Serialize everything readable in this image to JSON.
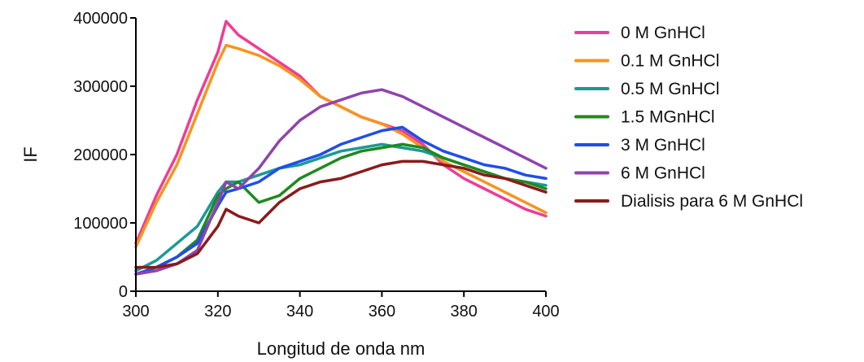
{
  "chart_data": {
    "type": "line",
    "xlabel": "Longitud de onda nm",
    "ylabel": "IF",
    "xlim": [
      300,
      400
    ],
    "ylim": [
      0,
      400000
    ],
    "x_ticks": [
      300,
      320,
      340,
      360,
      380,
      400
    ],
    "y_ticks": [
      0,
      100000,
      200000,
      300000,
      400000
    ],
    "x_tick_labels": [
      "300",
      "320",
      "340",
      "360",
      "380",
      "400"
    ],
    "y_tick_labels": [
      "0",
      "100000",
      "200000",
      "300000",
      "400000"
    ],
    "grid": false,
    "legend_position": "right",
    "x": [
      300,
      305,
      310,
      315,
      320,
      322,
      325,
      330,
      335,
      340,
      345,
      350,
      355,
      360,
      365,
      370,
      375,
      380,
      385,
      390,
      395,
      400
    ],
    "series": [
      {
        "name": "0 M GnHCl",
        "color": "#ee3d96",
        "values": [
          70000,
          140000,
          200000,
          280000,
          350000,
          395000,
          375000,
          355000,
          335000,
          315000,
          285000,
          270000,
          255000,
          245000,
          235000,
          215000,
          185000,
          165000,
          150000,
          135000,
          120000,
          110000
        ]
      },
      {
        "name": "0.1 M GnHCl",
        "color": "#f7941d",
        "values": [
          65000,
          130000,
          185000,
          260000,
          335000,
          360000,
          355000,
          345000,
          330000,
          310000,
          285000,
          270000,
          255000,
          245000,
          230000,
          210000,
          190000,
          175000,
          160000,
          145000,
          130000,
          115000
        ]
      },
      {
        "name": "0.5 M GnHCl",
        "color": "#1a9a96",
        "values": [
          30000,
          45000,
          70000,
          95000,
          145000,
          160000,
          160000,
          170000,
          180000,
          185000,
          195000,
          205000,
          210000,
          215000,
          210000,
          205000,
          195000,
          185000,
          175000,
          165000,
          160000,
          155000
        ]
      },
      {
        "name": "1.5 MGnHCl",
        "color": "#1e8a1e",
        "values": [
          25000,
          35000,
          50000,
          75000,
          140000,
          150000,
          160000,
          130000,
          140000,
          165000,
          180000,
          195000,
          205000,
          210000,
          215000,
          210000,
          195000,
          185000,
          175000,
          165000,
          160000,
          150000
        ]
      },
      {
        "name": "3 M GnHCl",
        "color": "#1f4ee8",
        "values": [
          25000,
          35000,
          50000,
          70000,
          125000,
          145000,
          150000,
          160000,
          180000,
          190000,
          200000,
          215000,
          225000,
          235000,
          240000,
          220000,
          205000,
          195000,
          185000,
          180000,
          170000,
          165000
        ]
      },
      {
        "name": "6 M GnHCl",
        "color": "#8e44ad",
        "values": [
          25000,
          30000,
          40000,
          60000,
          130000,
          160000,
          150000,
          180000,
          220000,
          250000,
          270000,
          280000,
          290000,
          295000,
          285000,
          270000,
          255000,
          240000,
          225000,
          210000,
          195000,
          180000
        ]
      },
      {
        "name": "Dialisis para 6 M GnHCl",
        "color": "#8b1a1a",
        "values": [
          35000,
          35000,
          40000,
          55000,
          95000,
          120000,
          110000,
          100000,
          130000,
          150000,
          160000,
          165000,
          175000,
          185000,
          190000,
          190000,
          185000,
          180000,
          170000,
          165000,
          155000,
          145000
        ]
      }
    ]
  }
}
